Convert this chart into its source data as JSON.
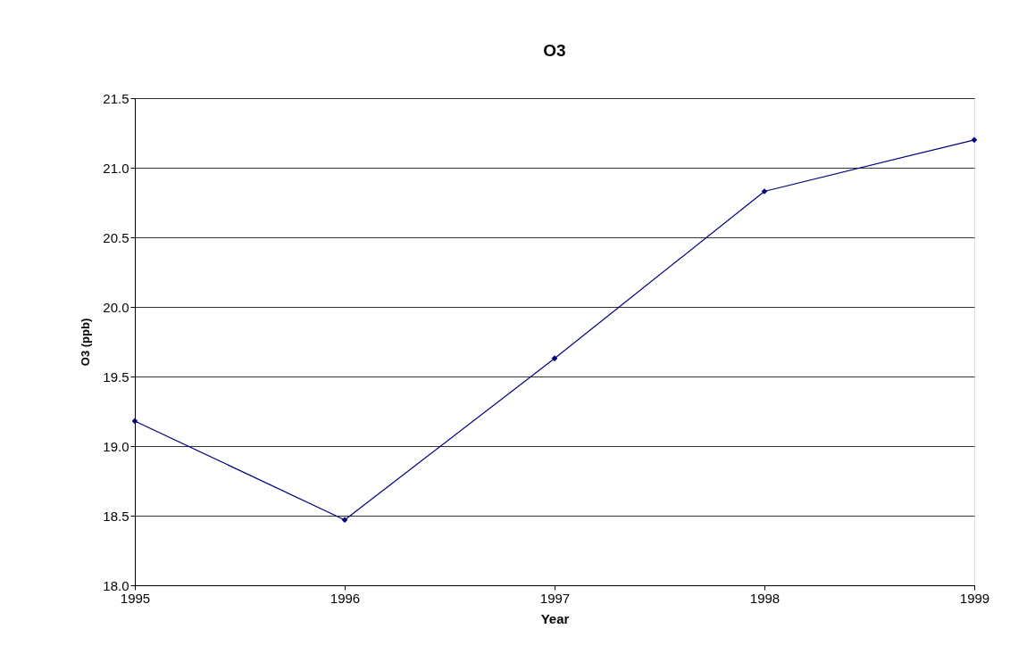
{
  "chart_data": {
    "type": "line",
    "title": "O3",
    "xlabel": "Year",
    "ylabel": "O3 (ppb)",
    "x": [
      1995,
      1996,
      1997,
      1998,
      1999
    ],
    "series": [
      {
        "color": "#000080",
        "values": [
          19.18,
          18.47,
          19.63,
          20.83,
          21.2
        ]
      }
    ],
    "xlim": [
      1995,
      1999
    ],
    "xticks": [
      1995,
      1996,
      1997,
      1998,
      1999
    ],
    "ylim": [
      18.0,
      21.5
    ],
    "yticks": [
      {
        "value": 18.0,
        "label": "18.0"
      },
      {
        "value": 18.5,
        "label": "18.5"
      },
      {
        "value": 19.0,
        "label": "19.0"
      },
      {
        "value": 19.5,
        "label": "19.5"
      },
      {
        "value": 20.0,
        "label": "20.0"
      },
      {
        "value": 20.5,
        "label": "20.5"
      },
      {
        "value": 21.0,
        "label": "21.0"
      },
      {
        "value": 21.5,
        "label": "21.5"
      }
    ],
    "grid": "y",
    "marker": "diamond",
    "line_style": "solid"
  }
}
